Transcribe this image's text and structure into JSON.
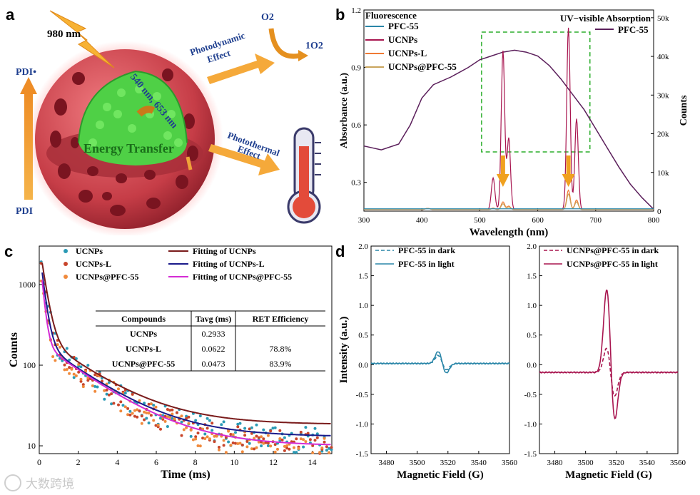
{
  "panels": {
    "a": "a",
    "b": "b",
    "c": "c",
    "d": "d"
  },
  "panel_a": {
    "laser_label": "980 nm",
    "emission_label": "540 nm, 653 nm",
    "energy_transfer": "Energy Transfer",
    "pdi_bottom": "PDI",
    "pdi_top": "PDI•",
    "photodynamic_line1": "Photodynamic",
    "photodynamic_line2": "Effect",
    "photothermal_line1": "Photothermal",
    "photothermal_line2": "Effect",
    "o2": "O2",
    "singlet_o2": "1O2",
    "colors": {
      "sphere": "#c9464f",
      "nanoparticle": "#56d84a",
      "arrow": "#f0a23a",
      "text_blue": "#1f3f8f"
    }
  },
  "chart_data": [
    {
      "id": "b",
      "type": "line",
      "title_left": "Fluorescence",
      "title_right": "UV−visible Absorption",
      "xlabel": "Wavelength (nm)",
      "ylabel_left": "Absorbance (a.u.)",
      "ylabel_right": "Counts",
      "xlim": [
        300,
        800
      ],
      "ylim_left": [
        0.15,
        1.2
      ],
      "ylim_right": [
        0,
        52000
      ],
      "xticks": [
        "300",
        "400",
        "500",
        "600",
        "700",
        "800"
      ],
      "yticks_left": [
        "0.3",
        "0.6",
        "0.9",
        "1.2"
      ],
      "yticks_right": [
        "0",
        "10k",
        "20k",
        "30k",
        "40k",
        "50k"
      ],
      "legend_left": [
        {
          "name": "PFC-55",
          "color": "#2a86a8"
        },
        {
          "name": "UCNPs",
          "color": "#a8154f"
        },
        {
          "name": "UCNPs-L",
          "color": "#f07a33"
        },
        {
          "name": "UCNPs@PFC-55",
          "color": "#c9a45c"
        }
      ],
      "legend_right": [
        {
          "name": "PFC-55",
          "color": "#5b1f5b"
        }
      ],
      "absorption": {
        "x": [
          300,
          330,
          360,
          380,
          400,
          420,
          450,
          480,
          500,
          520,
          540,
          560,
          580,
          600,
          620,
          640,
          660,
          680,
          700,
          720,
          740,
          760,
          780,
          800
        ],
        "y": [
          0.49,
          0.47,
          0.5,
          0.6,
          0.74,
          0.81,
          0.85,
          0.9,
          0.94,
          0.96,
          0.98,
          0.99,
          0.98,
          0.96,
          0.91,
          0.84,
          0.76,
          0.68,
          0.58,
          0.48,
          0.38,
          0.29,
          0.22,
          0.16
        ]
      },
      "fluorescence_peaks_nm": [
        540,
        653
      ],
      "fluorescence_peak_counts": {
        "UCNPs": [
          41000,
          47000
        ],
        "UCNPs-L": [
          2000,
          5000
        ],
        "UCNPs@PFC-55": [
          1500,
          4000
        ]
      }
    },
    {
      "id": "c",
      "type": "scatter",
      "xlabel": "Time (ms)",
      "ylabel": "Counts",
      "xlim": [
        0,
        15
      ],
      "ylim": [
        8,
        3000
      ],
      "log_y": true,
      "xticks": [
        "0",
        "2",
        "4",
        "6",
        "8",
        "10",
        "12",
        "14"
      ],
      "yticks": [
        "10",
        "100",
        "1000"
      ],
      "legend": [
        {
          "name": "UCNPs",
          "color": "#2a9ab5",
          "kind": "dot"
        },
        {
          "name": "UCNPs-L",
          "color": "#c8452b",
          "kind": "dot"
        },
        {
          "name": "UCNPs@PFC-55",
          "color": "#f08a3c",
          "kind": "dot"
        },
        {
          "name": "Fitting of UCNPs",
          "color": "#7a1b1b",
          "kind": "line"
        },
        {
          "name": "Fitting of UCNPs-L",
          "color": "#1a1a8a",
          "kind": "line"
        },
        {
          "name": "Fitting of UCNPs@PFC-55",
          "color": "#d42bd4",
          "kind": "line"
        }
      ]
    },
    {
      "id": "d1",
      "type": "line",
      "xlabel": "Magnetic Field (G)",
      "ylabel": "Intensity (a.u.)",
      "xlim": [
        3470,
        3560
      ],
      "ylim": [
        -1.5,
        2.0
      ],
      "xticks": [
        "3480",
        "3500",
        "3520",
        "3540",
        "3560"
      ],
      "yticks": [
        "-1.5",
        "-1.0",
        "-0.5",
        "0.0",
        "0.5",
        "1.0",
        "1.5",
        "2.0"
      ],
      "series": [
        {
          "name": "PFC-55 in dark",
          "style": "dashed",
          "color": "#2a86a8",
          "max": 0.15,
          "min": -0.12
        },
        {
          "name": "PFC-55 in light",
          "style": "solid",
          "color": "#2a86a8",
          "max": 0.22,
          "min": -0.18
        }
      ]
    },
    {
      "id": "d2",
      "type": "line",
      "xlabel": "Magnetic Field (G)",
      "ylabel": "",
      "xlim": [
        3470,
        3560
      ],
      "ylim": [
        -1.5,
        2.0
      ],
      "xticks": [
        "3480",
        "3500",
        "3520",
        "3540",
        "3560"
      ],
      "yticks": [
        "-1.5",
        "-1.0",
        "-0.5",
        "0.0",
        "0.5",
        "1.0",
        "1.5",
        "2.0"
      ],
      "series": [
        {
          "name": "UCNPs@PFC-55 in dark",
          "style": "dashed",
          "color": "#a8154f",
          "max": 0.45,
          "min": -0.45
        },
        {
          "name": "UCNPs@PFC-55 in light",
          "style": "solid",
          "color": "#a8154f",
          "max": 1.5,
          "min": -0.92
        }
      ]
    }
  ],
  "table": {
    "headers": [
      "Compounds",
      "Tavg (ms)",
      "RET Efficiency"
    ],
    "rows": [
      [
        "UCNPs",
        "0.2933",
        ""
      ],
      [
        "UCNPs-L",
        "0.0622",
        "78.8%"
      ],
      [
        "UCNPs@PFC-55",
        "0.0473",
        "83.9%"
      ]
    ]
  },
  "watermark": "大数跨境"
}
